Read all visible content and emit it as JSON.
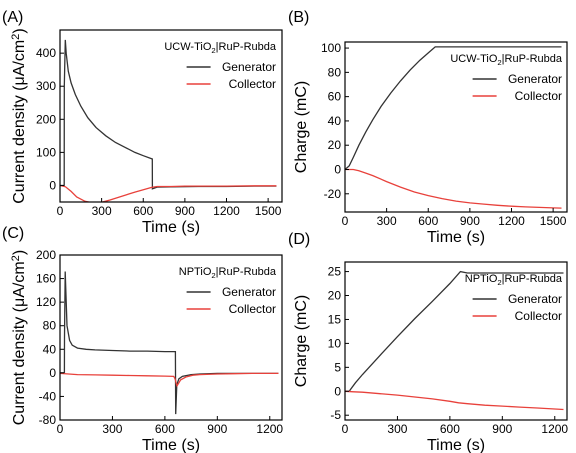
{
  "chart_data": [
    {
      "panel": "(A)",
      "type": "line",
      "legend_title": "UCW-TiO₂|RuP-Rubda",
      "legend_position": "top-right",
      "xlabel": "Time (s)",
      "ylabel": "Current density (μA/cm²)",
      "xlim": [
        0,
        1600
      ],
      "ylim": [
        -50,
        470
      ],
      "xticks": [
        0,
        300,
        600,
        900,
        1200,
        1500
      ],
      "yticks": [
        0,
        100,
        200,
        300,
        400
      ],
      "series": [
        {
          "name": "Generator",
          "color": "#333333",
          "x": [
            0,
            30,
            31,
            38,
            45,
            60,
            80,
            110,
            150,
            200,
            260,
            330,
            400,
            470,
            540,
            600,
            665,
            666,
            700,
            800,
            1000,
            1200,
            1400,
            1560
          ],
          "y": [
            0,
            0,
            300,
            440,
            400,
            345,
            310,
            275,
            240,
            205,
            175,
            150,
            130,
            115,
            100,
            90,
            80,
            -10,
            -5,
            -4,
            -3,
            -3,
            -2,
            -2
          ]
        },
        {
          "name": "Collector",
          "color": "#e8413b",
          "x": [
            0,
            40,
            80,
            120,
            180,
            240,
            300,
            360,
            420,
            480,
            540,
            600,
            660,
            700,
            800,
            900,
            1000,
            1200,
            1400,
            1560
          ],
          "y": [
            0,
            -4,
            -18,
            -35,
            -48,
            -53,
            -51,
            -44,
            -36,
            -28,
            -20,
            -13,
            -6,
            -3,
            -3,
            -2,
            -2,
            -2,
            -1,
            -1
          ]
        }
      ]
    },
    {
      "panel": "(B)",
      "type": "line",
      "legend_title": "UCW-TiO₂|RuP-Rubda",
      "legend_position": "top-right",
      "xlabel": "Time (s)",
      "ylabel": "Charge (mC)",
      "xlim": [
        0,
        1600
      ],
      "ylim": [
        -35,
        105
      ],
      "xticks": [
        0,
        300,
        600,
        900,
        1200,
        1500
      ],
      "yticks": [
        -20,
        0,
        20,
        40,
        60,
        80,
        100
      ],
      "series": [
        {
          "name": "Generator",
          "color": "#333333",
          "x": [
            0,
            30,
            60,
            100,
            150,
            200,
            260,
            330,
            400,
            470,
            540,
            600,
            650,
            700,
            900,
            1200,
            1560
          ],
          "y": [
            0,
            3,
            10,
            20,
            31,
            41,
            52,
            63,
            73,
            82,
            90,
            96,
            101,
            101,
            101,
            101,
            101
          ]
        },
        {
          "name": "Collector",
          "color": "#e8413b",
          "x": [
            0,
            60,
            100,
            150,
            200,
            300,
            400,
            500,
            600,
            700,
            800,
            900,
            1000,
            1100,
            1200,
            1300,
            1400,
            1500,
            1560
          ],
          "y": [
            0,
            0,
            -1,
            -3,
            -5,
            -10,
            -14.5,
            -18.5,
            -21.5,
            -24,
            -26,
            -27.5,
            -28.5,
            -29.5,
            -30.2,
            -30.8,
            -31.2,
            -31.6,
            -31.8
          ]
        }
      ]
    },
    {
      "panel": "(C)",
      "type": "line",
      "legend_title": "NPTiO₂|RuP-Rubda",
      "legend_position": "top-right",
      "xlabel": "Time (s)",
      "ylabel": "Current density (μA/cm²)",
      "xlim": [
        0,
        1270
      ],
      "ylim": [
        -80,
        200
      ],
      "xticks": [
        0,
        300,
        600,
        900,
        1200
      ],
      "yticks": [
        -80,
        -40,
        0,
        40,
        80,
        120,
        160,
        200
      ],
      "series": [
        {
          "name": "Generator",
          "color": "#333333",
          "x": [
            0,
            25,
            26,
            30,
            40,
            55,
            70,
            100,
            150,
            200,
            300,
            400,
            500,
            600,
            660,
            662,
            668,
            680,
            700,
            750,
            800,
            900,
            1000,
            1100,
            1250
          ],
          "y": [
            0,
            0,
            60,
            172,
            80,
            55,
            47,
            42,
            40,
            39,
            38,
            37,
            37,
            36,
            36,
            -70,
            -20,
            -10,
            -6,
            -3,
            -2,
            -1,
            -1,
            -1,
            -1
          ]
        },
        {
          "name": "Collector",
          "color": "#e8413b",
          "x": [
            0,
            50,
            100,
            200,
            300,
            400,
            500,
            600,
            650,
            655,
            660,
            665,
            670,
            690,
            720,
            760,
            800,
            900,
            1000,
            1100,
            1250
          ],
          "y": [
            -1,
            -2,
            -3,
            -3.5,
            -4,
            -4.5,
            -5,
            -5.5,
            -6,
            -8,
            -12,
            -18,
            -22,
            -12,
            -7,
            -4,
            -3,
            -2,
            -1.5,
            -1,
            -1
          ]
        }
      ]
    },
    {
      "panel": "(D)",
      "type": "line",
      "legend_title": "NPTiO₂|RuP-Rubda",
      "legend_position": "top-right",
      "xlabel": "Time (s)",
      "ylabel": "Charge (mC)",
      "xlim": [
        0,
        1270
      ],
      "ylim": [
        -6,
        27
      ],
      "xticks": [
        0,
        300,
        600,
        900,
        1200
      ],
      "yticks": [
        -5,
        0,
        5,
        10,
        15,
        20,
        25
      ],
      "series": [
        {
          "name": "Generator",
          "color": "#333333",
          "x": [
            0,
            25,
            30,
            60,
            100,
            200,
            300,
            400,
            500,
            600,
            660,
            700,
            800,
            900,
            1000,
            1100,
            1250
          ],
          "y": [
            0,
            0,
            0.3,
            1.8,
            3.5,
            7.5,
            11.4,
            15.2,
            18.8,
            22.5,
            25,
            24.7,
            24.7,
            24.7,
            24.7,
            24.7,
            24.7
          ]
        },
        {
          "name": "Collector",
          "color": "#e8413b",
          "x": [
            0,
            50,
            100,
            200,
            300,
            400,
            500,
            600,
            650,
            700,
            800,
            900,
            1000,
            1100,
            1200,
            1250
          ],
          "y": [
            0,
            -0.1,
            -0.2,
            -0.5,
            -0.8,
            -1.2,
            -1.6,
            -2.1,
            -2.4,
            -2.6,
            -2.9,
            -3.1,
            -3.3,
            -3.5,
            -3.7,
            -3.8
          ]
        }
      ]
    }
  ]
}
